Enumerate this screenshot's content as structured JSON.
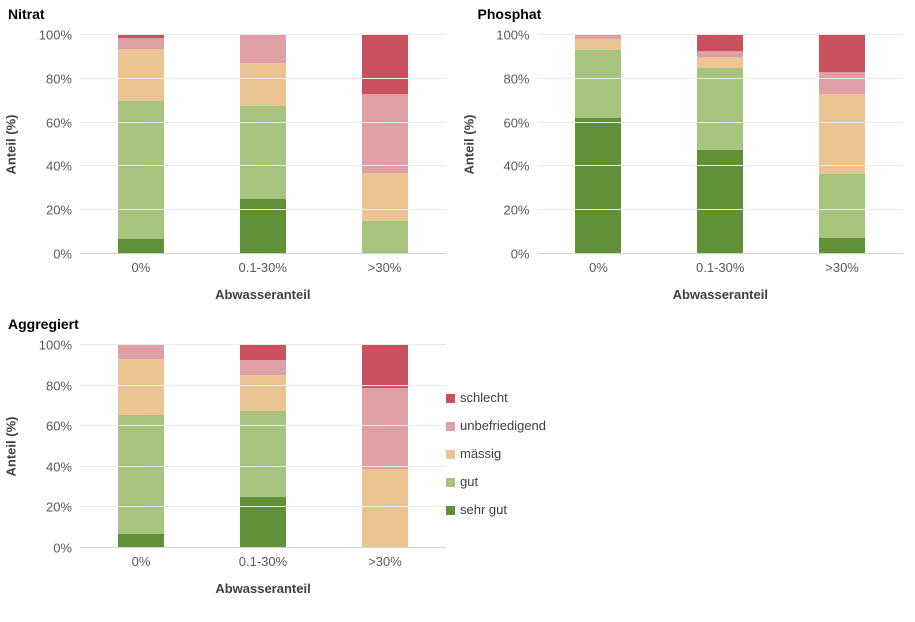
{
  "page": {
    "background": "#ffffff"
  },
  "palette": {
    "schlecht": "#c9505c",
    "unbefriedigend": "#dea0a5",
    "maessig": "#ecc494",
    "gut": "#a7c47f",
    "sehr_gut": "#609139",
    "gridline": "#ebebeb",
    "axis_line": "#d2d2d2",
    "tick_text": "#595959",
    "axis_title_text": "#404040"
  },
  "legend": {
    "items": [
      {
        "label": "schlecht",
        "color": "#c9505c"
      },
      {
        "label": "unbefriedigend",
        "color": "#dea0a5"
      },
      {
        "label": "mässig",
        "color": "#ecc494"
      },
      {
        "label": "gut",
        "color": "#a7c47f"
      },
      {
        "label": "sehr gut",
        "color": "#609139"
      }
    ]
  },
  "chart_data": [
    {
      "type": "bar",
      "stacked": true,
      "stacked_to_100_percent": true,
      "title": "Nitrat",
      "xlabel": "Abwasseranteil",
      "ylabel": "Anteil (%)",
      "ylim": [
        0,
        100
      ],
      "yticks": [
        "0%",
        "20%",
        "40%",
        "60%",
        "80%",
        "100%"
      ],
      "grid": true,
      "categories": [
        "0%",
        "0.1-30%",
        ">30%"
      ],
      "series": [
        {
          "name": "sehr gut",
          "color": "#609139",
          "values": [
            7,
            25,
            0
          ]
        },
        {
          "name": "gut",
          "color": "#a7c47f",
          "values": [
            63,
            42.5,
            15
          ]
        },
        {
          "name": "mässig",
          "color": "#ecc494",
          "values": [
            23.5,
            19.5,
            22
          ]
        },
        {
          "name": "unbefriedigend",
          "color": "#dea0a5",
          "values": [
            5,
            13,
            36
          ]
        },
        {
          "name": "schlecht",
          "color": "#c9505c",
          "values": [
            1.5,
            0,
            27
          ]
        }
      ]
    },
    {
      "type": "bar",
      "stacked": true,
      "stacked_to_100_percent": true,
      "title": "Phosphat",
      "xlabel": "Abwasseranteil",
      "ylabel": "Anteil (%)",
      "ylim": [
        0,
        100
      ],
      "yticks": [
        "0%",
        "20%",
        "40%",
        "60%",
        "80%",
        "100%"
      ],
      "grid": true,
      "categories": [
        "0%",
        "0.1-30%",
        ">30%"
      ],
      "series": [
        {
          "name": "sehr gut",
          "color": "#609139",
          "values": [
            62,
            47.5,
            7.5
          ]
        },
        {
          "name": "gut",
          "color": "#a7c47f",
          "values": [
            31,
            37.5,
            29
          ]
        },
        {
          "name": "mässig",
          "color": "#ecc494",
          "values": [
            5,
            5,
            36.5
          ]
        },
        {
          "name": "unbefriedigend",
          "color": "#dea0a5",
          "values": [
            2,
            2.5,
            10
          ]
        },
        {
          "name": "schlecht",
          "color": "#c9505c",
          "values": [
            0,
            7.5,
            17
          ]
        }
      ]
    },
    {
      "type": "bar",
      "stacked": true,
      "stacked_to_100_percent": true,
      "title": "Aggregiert",
      "xlabel": "Abwasseranteil",
      "ylabel": "Anteil (%)",
      "ylim": [
        0,
        100
      ],
      "yticks": [
        "0%",
        "20%",
        "40%",
        "60%",
        "80%",
        "100%"
      ],
      "grid": true,
      "categories": [
        "0%",
        "0.1-30%",
        ">30%"
      ],
      "series": [
        {
          "name": "sehr gut",
          "color": "#609139",
          "values": [
            7,
            25,
            0
          ]
        },
        {
          "name": "gut",
          "color": "#a7c47f",
          "values": [
            58.5,
            42.5,
            0
          ]
        },
        {
          "name": "mässig",
          "color": "#ecc494",
          "values": [
            27.5,
            17.5,
            39
          ]
        },
        {
          "name": "unbefriedigend",
          "color": "#dea0a5",
          "values": [
            7,
            7.5,
            40
          ]
        },
        {
          "name": "schlecht",
          "color": "#c9505c",
          "values": [
            0,
            7.5,
            21
          ]
        }
      ]
    }
  ]
}
